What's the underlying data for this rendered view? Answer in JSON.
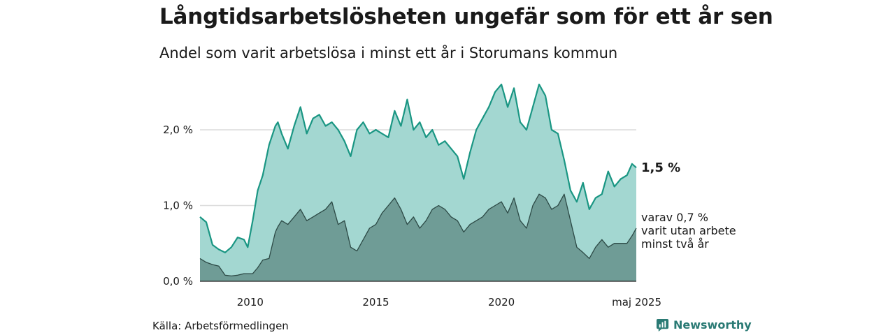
{
  "header": {
    "title": "Långtidsarbetslösheten ungefär som för ett år sen",
    "subtitle": "Andel som varit arbetslösa i minst ett år i Storumans kommun"
  },
  "footer": {
    "source": "Källa: Arbetsförmedlingen",
    "brand": "Newsworthy"
  },
  "colors": {
    "series1_line": "#1a9683",
    "series1_fill": "#a3d7d1",
    "series2_line": "#2d4a46",
    "series2_fill": "#6f9c96",
    "gridline": "#dcdcdc",
    "brand": "#2a7a74"
  },
  "chart_data": {
    "type": "area",
    "y_ticks": [
      {
        "value": 0.0,
        "label": "0,0 %"
      },
      {
        "value": 1.0,
        "label": "1,0 %"
      },
      {
        "value": 2.0,
        "label": "2,0 %"
      }
    ],
    "x_ticks": [
      {
        "value": 2010,
        "label": "2010"
      },
      {
        "value": 2015,
        "label": "2015"
      },
      {
        "value": 2020,
        "label": "2020"
      },
      {
        "value": 2025.37,
        "label": "maj 2025"
      }
    ],
    "xlim": [
      2008.0,
      2025.37
    ],
    "ylim": [
      0,
      2.7
    ],
    "grid": true,
    "end_labels": {
      "series1": "1,5 %",
      "series2": [
        "varav 0,7 %",
        "varit utan arbete",
        "minst två år"
      ]
    },
    "series": [
      {
        "key": "minst_ett_ar",
        "x": [
          2008.0,
          2008.25,
          2008.5,
          2008.75,
          2009.0,
          2009.25,
          2009.5,
          2009.75,
          2009.9,
          2010.1,
          2010.3,
          2010.5,
          2010.75,
          2011.0,
          2011.1,
          2011.25,
          2011.5,
          2011.75,
          2012.0,
          2012.25,
          2012.5,
          2012.75,
          2013.0,
          2013.25,
          2013.5,
          2013.75,
          2014.0,
          2014.25,
          2014.5,
          2014.75,
          2015.0,
          2015.25,
          2015.5,
          2015.75,
          2016.0,
          2016.25,
          2016.5,
          2016.75,
          2017.0,
          2017.25,
          2017.5,
          2017.75,
          2018.0,
          2018.25,
          2018.5,
          2018.75,
          2019.0,
          2019.25,
          2019.5,
          2019.75,
          2020.0,
          2020.25,
          2020.5,
          2020.75,
          2021.0,
          2021.25,
          2021.5,
          2021.75,
          2022.0,
          2022.25,
          2022.5,
          2022.75,
          2023.0,
          2023.25,
          2023.5,
          2023.75,
          2024.0,
          2024.25,
          2024.5,
          2024.75,
          2025.0,
          2025.2,
          2025.37
        ],
        "y": [
          0.85,
          0.78,
          0.48,
          0.42,
          0.38,
          0.45,
          0.58,
          0.55,
          0.45,
          0.8,
          1.2,
          1.4,
          1.8,
          2.05,
          2.1,
          1.95,
          1.75,
          2.05,
          2.3,
          1.95,
          2.15,
          2.2,
          2.05,
          2.1,
          2.0,
          1.85,
          1.65,
          2.0,
          2.1,
          1.95,
          2.0,
          1.95,
          1.9,
          2.25,
          2.05,
          2.4,
          2.0,
          2.1,
          1.9,
          2.0,
          1.8,
          1.85,
          1.75,
          1.65,
          1.35,
          1.7,
          2.0,
          2.15,
          2.3,
          2.5,
          2.6,
          2.3,
          2.55,
          2.1,
          2.0,
          2.3,
          2.6,
          2.45,
          2.0,
          1.95,
          1.6,
          1.2,
          1.05,
          1.3,
          0.95,
          1.1,
          1.15,
          1.45,
          1.25,
          1.35,
          1.4,
          1.55,
          1.5
        ]
      },
      {
        "key": "minst_tva_ar",
        "x": [
          2008.0,
          2008.25,
          2008.5,
          2008.75,
          2009.0,
          2009.25,
          2009.5,
          2009.75,
          2009.9,
          2010.1,
          2010.3,
          2010.5,
          2010.75,
          2011.0,
          2011.1,
          2011.25,
          2011.5,
          2011.75,
          2012.0,
          2012.25,
          2012.5,
          2012.75,
          2013.0,
          2013.25,
          2013.5,
          2013.75,
          2014.0,
          2014.25,
          2014.5,
          2014.75,
          2015.0,
          2015.25,
          2015.5,
          2015.75,
          2016.0,
          2016.25,
          2016.5,
          2016.75,
          2017.0,
          2017.25,
          2017.5,
          2017.75,
          2018.0,
          2018.25,
          2018.5,
          2018.75,
          2019.0,
          2019.25,
          2019.5,
          2019.75,
          2020.0,
          2020.25,
          2020.5,
          2020.75,
          2021.0,
          2021.25,
          2021.5,
          2021.75,
          2022.0,
          2022.25,
          2022.5,
          2022.75,
          2023.0,
          2023.25,
          2023.5,
          2023.75,
          2024.0,
          2024.25,
          2024.5,
          2024.75,
          2025.0,
          2025.2,
          2025.37
        ],
        "y": [
          0.3,
          0.25,
          0.22,
          0.2,
          0.08,
          0.07,
          0.08,
          0.1,
          0.1,
          0.1,
          0.18,
          0.28,
          0.3,
          0.65,
          0.72,
          0.8,
          0.75,
          0.85,
          0.95,
          0.8,
          0.85,
          0.9,
          0.95,
          1.05,
          0.75,
          0.8,
          0.45,
          0.4,
          0.55,
          0.7,
          0.75,
          0.9,
          1.0,
          1.1,
          0.95,
          0.75,
          0.85,
          0.7,
          0.8,
          0.95,
          1.0,
          0.95,
          0.85,
          0.8,
          0.65,
          0.75,
          0.8,
          0.85,
          0.95,
          1.0,
          1.05,
          0.9,
          1.1,
          0.8,
          0.7,
          1.0,
          1.15,
          1.1,
          0.95,
          1.0,
          1.15,
          0.8,
          0.45,
          0.38,
          0.3,
          0.45,
          0.55,
          0.45,
          0.5,
          0.5,
          0.5,
          0.6,
          0.7
        ]
      }
    ]
  }
}
